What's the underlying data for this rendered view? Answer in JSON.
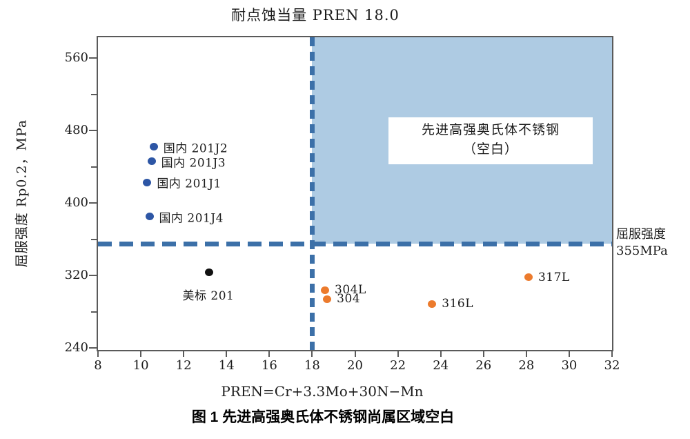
{
  "caption": "图 1 先进高强奥氏体不锈钢尚属区域空白",
  "annotations": {
    "region_label_line1": "先进高强奥氏体不锈钢",
    "region_label_line2": "（空白）",
    "right_label_line1": "屈服强度",
    "right_label_line2": "355MPa"
  },
  "chart_data": {
    "type": "scatter",
    "title": "耐点蚀当量 PREN 18.0",
    "xlabel": "PREN=Cr+3.3Mo+30N−Mn",
    "ylabel": "屈服强度 Rp0.2，MPa",
    "xlim": [
      8,
      32
    ],
    "ylim": [
      238,
      583
    ],
    "x_ticks": [
      8,
      10,
      12,
      14,
      16,
      18,
      20,
      22,
      24,
      26,
      28,
      30,
      32
    ],
    "y_ticks": [
      240,
      320,
      400,
      480,
      560
    ],
    "y_minor_ticks": [
      280,
      360,
      440,
      520
    ],
    "grid": false,
    "legend": "none",
    "frame_color": "#5a5a5a",
    "reference_lines": {
      "vertical": {
        "x": 18,
        "label": "耐点蚀当量 PREN 18.0",
        "color": "#3c70a8",
        "style": "dashed"
      },
      "horizontal": {
        "y": 355,
        "label": "屈服强度 355MPa",
        "color": "#3c70a8",
        "style": "dashed"
      }
    },
    "shaded_region": {
      "x_from": 18,
      "x_to": 32,
      "y_from": 355,
      "y_to": 583,
      "color": "#aecbe3",
      "label": "先进高强奥氏体不锈钢（空白）"
    },
    "series": [
      {
        "name": "domestic-201-grades",
        "color": "#2d56a5",
        "points": [
          {
            "label": "国内 201J2",
            "x": 10.6,
            "y": 462,
            "label_pos": "right"
          },
          {
            "label": "国内 201J3",
            "x": 10.5,
            "y": 446,
            "label_pos": "right"
          },
          {
            "label": "国内 201J1",
            "x": 10.3,
            "y": 423,
            "label_pos": "right"
          },
          {
            "label": "国内 201J4",
            "x": 10.4,
            "y": 385,
            "label_pos": "right"
          }
        ]
      },
      {
        "name": "us-standard-201",
        "color": "#111111",
        "points": [
          {
            "label": "美标 201",
            "x": 13.2,
            "y": 324,
            "label_pos": "below"
          }
        ]
      },
      {
        "name": "300-series-grades",
        "color": "#ec7b2d",
        "points": [
          {
            "label": "304L",
            "x": 18.6,
            "y": 304,
            "label_pos": "right"
          },
          {
            "label": "304",
            "x": 18.7,
            "y": 294,
            "label_pos": "right"
          },
          {
            "label": "316L",
            "x": 23.6,
            "y": 289,
            "label_pos": "right"
          },
          {
            "label": "317L",
            "x": 28.1,
            "y": 318,
            "label_pos": "right"
          }
        ]
      }
    ]
  }
}
